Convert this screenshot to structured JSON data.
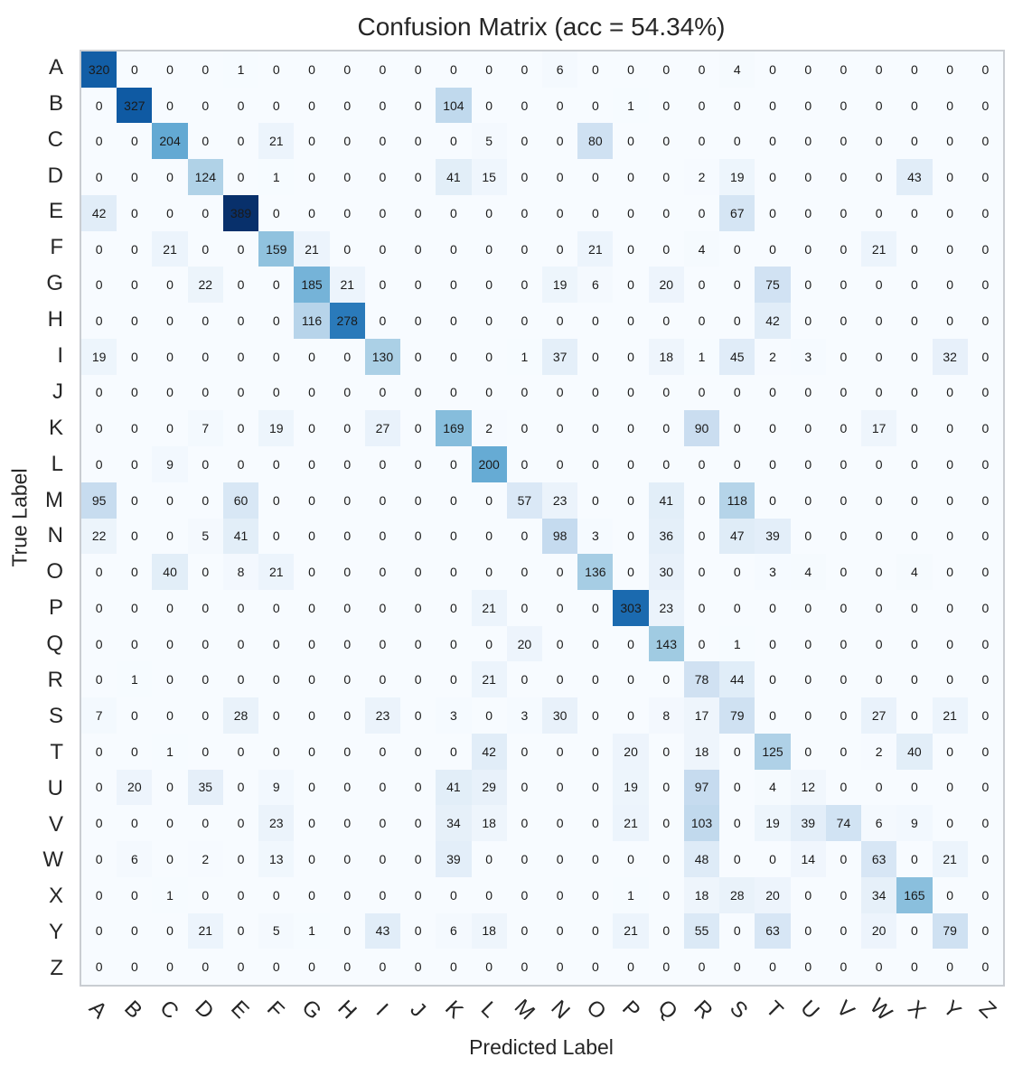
{
  "chart_data": {
    "type": "heatmap",
    "title": "Confusion Matrix (acc = 54.34%)",
    "xlabel": "Predicted Label",
    "ylabel": "True Label",
    "labels": [
      "A",
      "B",
      "C",
      "D",
      "E",
      "F",
      "G",
      "H",
      "I",
      "J",
      "K",
      "L",
      "M",
      "N",
      "O",
      "P",
      "Q",
      "R",
      "S",
      "T",
      "U",
      "V",
      "W",
      "X",
      "Y",
      "Z"
    ],
    "vmin": 0,
    "vmax": 389,
    "colormap": "Blues",
    "colormap_stops": [
      [
        0.0,
        "#f7fbff"
      ],
      [
        0.125,
        "#deebf7"
      ],
      [
        0.25,
        "#c6dbef"
      ],
      [
        0.375,
        "#9ecae1"
      ],
      [
        0.5,
        "#6baed6"
      ],
      [
        0.625,
        "#4292c6"
      ],
      [
        0.75,
        "#2171b5"
      ],
      [
        0.875,
        "#08519c"
      ],
      [
        1.0,
        "#08306b"
      ]
    ],
    "legend_position": "none",
    "grid": false,
    "matrix": [
      [
        320,
        0,
        0,
        0,
        1,
        0,
        0,
        0,
        0,
        0,
        0,
        0,
        0,
        6,
        0,
        0,
        0,
        0,
        4,
        0,
        0,
        0,
        0,
        0,
        0,
        0
      ],
      [
        0,
        327,
        0,
        0,
        0,
        0,
        0,
        0,
        0,
        0,
        104,
        0,
        0,
        0,
        0,
        1,
        0,
        0,
        0,
        0,
        0,
        0,
        0,
        0,
        0,
        0
      ],
      [
        0,
        0,
        204,
        0,
        0,
        21,
        0,
        0,
        0,
        0,
        0,
        5,
        0,
        0,
        80,
        0,
        0,
        0,
        0,
        0,
        0,
        0,
        0,
        0,
        0,
        0
      ],
      [
        0,
        0,
        0,
        124,
        0,
        1,
        0,
        0,
        0,
        0,
        41,
        15,
        0,
        0,
        0,
        0,
        0,
        2,
        19,
        0,
        0,
        0,
        0,
        43,
        0,
        0
      ],
      [
        42,
        0,
        0,
        0,
        389,
        0,
        0,
        0,
        0,
        0,
        0,
        0,
        0,
        0,
        0,
        0,
        0,
        0,
        67,
        0,
        0,
        0,
        0,
        0,
        0,
        0
      ],
      [
        0,
        0,
        21,
        0,
        0,
        159,
        21,
        0,
        0,
        0,
        0,
        0,
        0,
        0,
        21,
        0,
        0,
        4,
        0,
        0,
        0,
        0,
        21,
        0,
        0,
        0
      ],
      [
        0,
        0,
        0,
        22,
        0,
        0,
        185,
        21,
        0,
        0,
        0,
        0,
        0,
        19,
        6,
        0,
        20,
        0,
        0,
        75,
        0,
        0,
        0,
        0,
        0,
        0
      ],
      [
        0,
        0,
        0,
        0,
        0,
        0,
        116,
        278,
        0,
        0,
        0,
        0,
        0,
        0,
        0,
        0,
        0,
        0,
        0,
        42,
        0,
        0,
        0,
        0,
        0,
        0
      ],
      [
        19,
        0,
        0,
        0,
        0,
        0,
        0,
        0,
        130,
        0,
        0,
        0,
        1,
        37,
        0,
        0,
        18,
        1,
        45,
        2,
        3,
        0,
        0,
        0,
        32,
        0
      ],
      [
        0,
        0,
        0,
        0,
        0,
        0,
        0,
        0,
        0,
        0,
        0,
        0,
        0,
        0,
        0,
        0,
        0,
        0,
        0,
        0,
        0,
        0,
        0,
        0,
        0,
        0
      ],
      [
        0,
        0,
        0,
        7,
        0,
        19,
        0,
        0,
        27,
        0,
        169,
        2,
        0,
        0,
        0,
        0,
        0,
        90,
        0,
        0,
        0,
        0,
        17,
        0,
        0,
        0
      ],
      [
        0,
        0,
        9,
        0,
        0,
        0,
        0,
        0,
        0,
        0,
        0,
        200,
        0,
        0,
        0,
        0,
        0,
        0,
        0,
        0,
        0,
        0,
        0,
        0,
        0,
        0
      ],
      [
        95,
        0,
        0,
        0,
        60,
        0,
        0,
        0,
        0,
        0,
        0,
        0,
        57,
        23,
        0,
        0,
        41,
        0,
        118,
        0,
        0,
        0,
        0,
        0,
        0,
        0
      ],
      [
        22,
        0,
        0,
        5,
        41,
        0,
        0,
        0,
        0,
        0,
        0,
        0,
        0,
        98,
        3,
        0,
        36,
        0,
        47,
        39,
        0,
        0,
        0,
        0,
        0,
        0
      ],
      [
        0,
        0,
        40,
        0,
        8,
        21,
        0,
        0,
        0,
        0,
        0,
        0,
        0,
        0,
        136,
        0,
        30,
        0,
        0,
        3,
        4,
        0,
        0,
        4,
        0,
        0
      ],
      [
        0,
        0,
        0,
        0,
        0,
        0,
        0,
        0,
        0,
        0,
        0,
        21,
        0,
        0,
        0,
        303,
        23,
        0,
        0,
        0,
        0,
        0,
        0,
        0,
        0,
        0
      ],
      [
        0,
        0,
        0,
        0,
        0,
        0,
        0,
        0,
        0,
        0,
        0,
        0,
        20,
        0,
        0,
        0,
        143,
        0,
        1,
        0,
        0,
        0,
        0,
        0,
        0,
        0
      ],
      [
        0,
        1,
        0,
        0,
        0,
        0,
        0,
        0,
        0,
        0,
        0,
        21,
        0,
        0,
        0,
        0,
        0,
        78,
        44,
        0,
        0,
        0,
        0,
        0,
        0,
        0
      ],
      [
        7,
        0,
        0,
        0,
        28,
        0,
        0,
        0,
        23,
        0,
        3,
        0,
        3,
        30,
        0,
        0,
        8,
        17,
        79,
        0,
        0,
        0,
        27,
        0,
        21,
        0
      ],
      [
        0,
        0,
        1,
        0,
        0,
        0,
        0,
        0,
        0,
        0,
        0,
        42,
        0,
        0,
        0,
        20,
        0,
        18,
        0,
        125,
        0,
        0,
        2,
        40,
        0,
        0
      ],
      [
        0,
        20,
        0,
        35,
        0,
        9,
        0,
        0,
        0,
        0,
        41,
        29,
        0,
        0,
        0,
        19,
        0,
        97,
        0,
        4,
        12,
        0,
        0,
        0,
        0,
        0
      ],
      [
        0,
        0,
        0,
        0,
        0,
        23,
        0,
        0,
        0,
        0,
        34,
        18,
        0,
        0,
        0,
        21,
        0,
        103,
        0,
        19,
        39,
        74,
        6,
        9,
        0,
        0
      ],
      [
        0,
        6,
        0,
        2,
        0,
        13,
        0,
        0,
        0,
        0,
        39,
        0,
        0,
        0,
        0,
        0,
        0,
        48,
        0,
        0,
        14,
        0,
        63,
        0,
        21,
        0
      ],
      [
        0,
        0,
        1,
        0,
        0,
        0,
        0,
        0,
        0,
        0,
        0,
        0,
        0,
        0,
        0,
        1,
        0,
        18,
        28,
        20,
        0,
        0,
        34,
        165,
        0,
        0
      ],
      [
        0,
        0,
        0,
        21,
        0,
        5,
        1,
        0,
        43,
        0,
        6,
        18,
        0,
        0,
        0,
        21,
        0,
        55,
        0,
        63,
        0,
        0,
        20,
        0,
        79,
        0
      ],
      [
        0,
        0,
        0,
        0,
        0,
        0,
        0,
        0,
        0,
        0,
        0,
        0,
        0,
        0,
        0,
        0,
        0,
        0,
        0,
        0,
        0,
        0,
        0,
        0,
        0,
        0
      ]
    ]
  }
}
